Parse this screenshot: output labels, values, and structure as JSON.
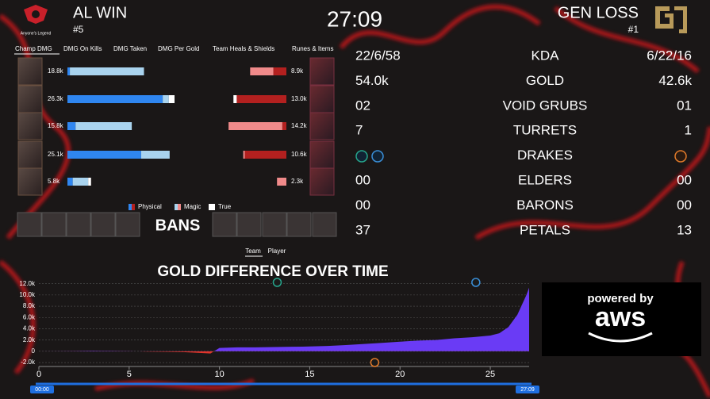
{
  "header": {
    "left_team": "AL WIN",
    "left_rank": "#5",
    "left_logo_text": "Anyone's Legend",
    "timer": "27:09",
    "right_team": "GEN LOSS",
    "right_rank": "#1"
  },
  "tabs": [
    "Champ DMG",
    "DMG On Kills",
    "DMG Taken",
    "DMG Per Gold",
    "Team Heals & Shields",
    "Runes & Items"
  ],
  "chart_data": [
    {
      "type": "stacked-hbar",
      "xlim": [
        0,
        30
      ],
      "series": [
        {
          "name": "Physical",
          "colors": [
            "#2f86f0",
            "#b3201f"
          ],
          "left": [
            0.6,
            23.4,
            2.0,
            18.1,
            1.3
          ],
          "right": [
            3.2,
            12.2,
            1.0,
            10.2,
            0
          ]
        },
        {
          "name": "Magic",
          "colors": [
            "#a9d3ee",
            "#f08a8a"
          ],
          "left": [
            18.2,
            1.5,
            13.8,
            7.0,
            3.8
          ],
          "right": [
            5.7,
            0,
            13.2,
            0.4,
            2.3
          ]
        },
        {
          "name": "True",
          "colors": [
            "#ffffff",
            "#ffffff"
          ],
          "left": [
            0,
            1.4,
            0,
            0,
            0.7
          ],
          "right": [
            0,
            0.8,
            0,
            0,
            0
          ]
        }
      ],
      "left_totals": [
        18.8,
        26.3,
        15.8,
        25.1,
        5.8
      ],
      "left_value_labels": [
        "18.8k",
        "26.3k",
        "15.8k",
        "25.1k",
        "5.8k"
      ],
      "right_totals": [
        8.9,
        13.0,
        14.2,
        10.6,
        2.3
      ],
      "right_value_labels": [
        "8.9k",
        "13.0k",
        "14.2k",
        "10.6k",
        "2.3k"
      ]
    },
    {
      "type": "area",
      "title": "GOLD DIFFERENCE OVER TIME",
      "x": [
        0,
        1,
        2,
        3,
        4,
        5,
        6,
        7,
        8,
        9,
        9.5,
        10,
        11,
        12,
        13,
        14,
        15,
        16,
        17,
        18,
        19,
        20,
        21,
        22,
        23,
        24,
        25,
        25.5,
        26,
        26.5,
        27,
        27.15
      ],
      "values": [
        0,
        20,
        50,
        80,
        60,
        30,
        -50,
        -100,
        -150,
        -300,
        -400,
        600,
        700,
        700,
        750,
        800,
        850,
        950,
        1100,
        1300,
        1500,
        1700,
        1900,
        2000,
        2300,
        2500,
        2800,
        3200,
        4300,
        6500,
        10000,
        11300
      ],
      "xlim": [
        0,
        27.15
      ],
      "xticks": [
        0,
        5,
        10,
        15,
        20,
        25
      ],
      "ylim": [
        -2700,
        12800
      ],
      "yticks": [
        {
          "value": 12000,
          "label": "12.0k"
        },
        {
          "value": 10000,
          "label": "10.0k"
        },
        {
          "value": 8000,
          "label": "8.0k"
        },
        {
          "value": 6000,
          "label": "6.0k"
        },
        {
          "value": 4000,
          "label": "4.0k"
        },
        {
          "value": 2000,
          "label": "2.0k"
        },
        0,
        {
          "value": -2000,
          "label": "-2.0k"
        }
      ],
      "colors": {
        "positive": "#6a3bf5",
        "negative": "#e0352b"
      },
      "grid": true,
      "events": [
        {
          "x": 13.2,
          "position": "top",
          "color": "#26a58c"
        },
        {
          "x": 24.2,
          "position": "top",
          "color": "#3a8fd8"
        },
        {
          "x": 18.6,
          "position": "bottom",
          "color": "#e07a2a"
        }
      ]
    }
  ],
  "bans": "BANS",
  "toggle": [
    "Team",
    "Player"
  ],
  "stats": {
    "rows": [
      {
        "left": "22/6/58",
        "label": "KDA",
        "right": "6/22/16"
      },
      {
        "left": "54.0k",
        "label": "GOLD",
        "right": "42.6k"
      },
      {
        "left": "02",
        "label": "VOID GRUBS",
        "right": "01"
      },
      {
        "left": "7",
        "label": "TURRETS",
        "right": "1"
      },
      {
        "label": "DRAKES"
      },
      {
        "left": "00",
        "label": "ELDERS",
        "right": "00"
      },
      {
        "left": "00",
        "label": "BARONS",
        "right": "00"
      },
      {
        "left": "37",
        "label": "PETALS",
        "right": "13"
      }
    ]
  },
  "slider": {
    "start": "00:00",
    "end": "27:09"
  },
  "sponsor": {
    "line1": "powered by",
    "line2": "aws"
  }
}
